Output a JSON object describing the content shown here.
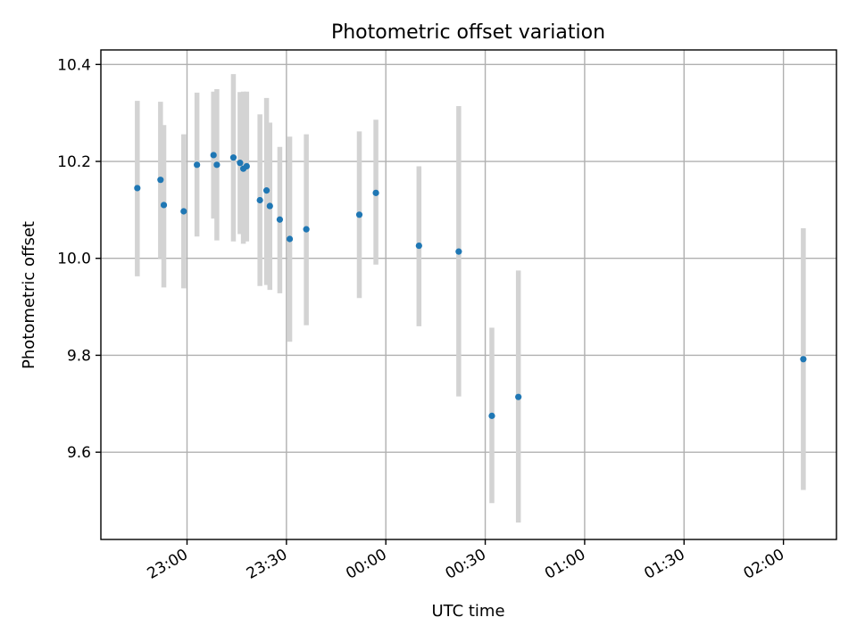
{
  "chart_data": {
    "type": "scatter",
    "title": "Photometric offset variation",
    "xlabel": "UTC time",
    "ylabel": "Photometric offset",
    "x_ticks": [
      "23:00",
      "23:30",
      "00:00",
      "00:30",
      "01:00",
      "01:30",
      "02:00"
    ],
    "y_ticks": [
      "9.6",
      "9.8",
      "10.0",
      "10.2",
      "10.4"
    ],
    "xlim": [
      "22:34",
      "02:16"
    ],
    "ylim": [
      9.42,
      10.43
    ],
    "grid": true,
    "colors": {
      "point": "#1f77b4",
      "errorbar": "#d3d3d3"
    },
    "series": [
      {
        "points": [
          {
            "x": "22:45",
            "y": 10.145,
            "ylo": 9.963,
            "yhi": 10.325
          },
          {
            "x": "22:52",
            "y": 10.162,
            "ylo": 10.0,
            "yhi": 10.323
          },
          {
            "x": "22:53",
            "y": 10.11,
            "ylo": 9.94,
            "yhi": 10.275
          },
          {
            "x": "22:59",
            "y": 10.097,
            "ylo": 9.938,
            "yhi": 10.256
          },
          {
            "x": "23:03",
            "y": 10.193,
            "ylo": 10.045,
            "yhi": 10.342
          },
          {
            "x": "23:08",
            "y": 10.213,
            "ylo": 10.082,
            "yhi": 10.344
          },
          {
            "x": "23:09",
            "y": 10.193,
            "ylo": 10.037,
            "yhi": 10.349
          },
          {
            "x": "23:14",
            "y": 10.208,
            "ylo": 10.035,
            "yhi": 10.38
          },
          {
            "x": "23:16",
            "y": 10.197,
            "ylo": 10.05,
            "yhi": 10.343
          },
          {
            "x": "23:17",
            "y": 10.185,
            "ylo": 10.03,
            "yhi": 10.344
          },
          {
            "x": "23:18",
            "y": 10.19,
            "ylo": 10.035,
            "yhi": 10.344
          },
          {
            "x": "23:22",
            "y": 10.12,
            "ylo": 9.943,
            "yhi": 10.297
          },
          {
            "x": "23:24",
            "y": 10.14,
            "ylo": 9.945,
            "yhi": 10.331
          },
          {
            "x": "23:25",
            "y": 10.108,
            "ylo": 9.935,
            "yhi": 10.28
          },
          {
            "x": "23:28",
            "y": 10.08,
            "ylo": 9.928,
            "yhi": 10.23
          },
          {
            "x": "23:31",
            "y": 10.04,
            "ylo": 9.828,
            "yhi": 10.251
          },
          {
            "x": "23:36",
            "y": 10.06,
            "ylo": 9.862,
            "yhi": 10.256
          },
          {
            "x": "23:52",
            "y": 10.09,
            "ylo": 9.918,
            "yhi": 10.262
          },
          {
            "x": "23:57",
            "y": 10.135,
            "ylo": 9.987,
            "yhi": 10.286
          },
          {
            "x": "00:10",
            "y": 10.026,
            "ylo": 9.86,
            "yhi": 10.19
          },
          {
            "x": "00:22",
            "y": 10.014,
            "ylo": 9.715,
            "yhi": 10.314
          },
          {
            "x": "00:32",
            "y": 9.675,
            "ylo": 9.495,
            "yhi": 9.857
          },
          {
            "x": "00:40",
            "y": 9.714,
            "ylo": 9.455,
            "yhi": 9.975
          },
          {
            "x": "02:06",
            "y": 9.792,
            "ylo": 9.522,
            "yhi": 10.062
          }
        ]
      }
    ]
  }
}
